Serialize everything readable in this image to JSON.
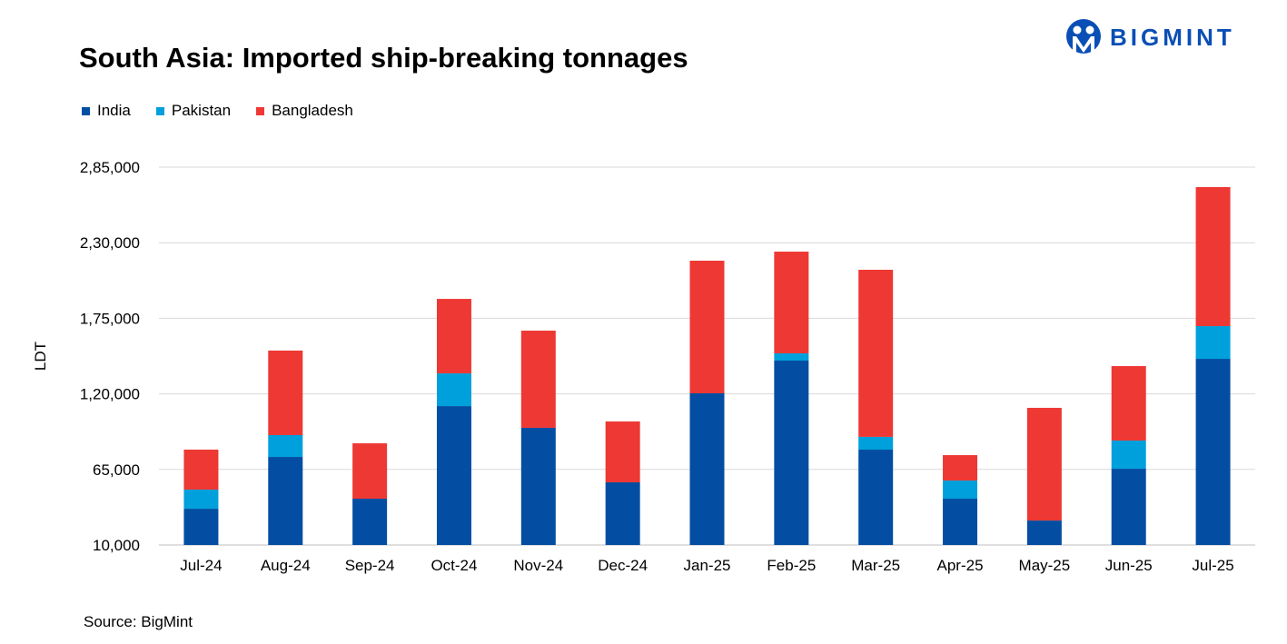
{
  "brand": "BIGMINT",
  "source": "Source: BigMint",
  "chart_data": {
    "type": "bar",
    "stacked": true,
    "title": "South Asia: Imported ship-breaking tonnages",
    "ylabel": "LDT",
    "xlabel": "",
    "ylim": [
      10000,
      285000
    ],
    "yticks": [
      10000,
      65000,
      120000,
      175000,
      230000,
      285000
    ],
    "ytick_labels": [
      "10,000",
      "65,000",
      "1,20,000",
      "1,75,000",
      "2,30,000",
      "2,85,000"
    ],
    "grid": true,
    "legend_position": "top-left",
    "categories": [
      "Jul-24",
      "Aug-24",
      "Sep-24",
      "Oct-24",
      "Nov-24",
      "Dec-24",
      "Jan-25",
      "Feb-25",
      "Mar-25",
      "Apr-25",
      "May-25",
      "Jun-25",
      "Jul-25"
    ],
    "series": [
      {
        "name": "India",
        "color": "#034ea2",
        "values": [
          36400,
          74100,
          43700,
          111100,
          95300,
          55600,
          120400,
          144200,
          79400,
          43700,
          27800,
          65500,
          145500
        ]
      },
      {
        "name": "Pakistan",
        "color": "#00a0dc",
        "values": [
          13900,
          15900,
          0,
          23800,
          0,
          0,
          0,
          5300,
          9300,
          13200,
          0,
          20500,
          23800
        ]
      },
      {
        "name": "Bangladesh",
        "color": "#ee3833",
        "values": [
          29100,
          61500,
          40300,
          54200,
          70700,
          44300,
          96500,
          74000,
          121600,
          18500,
          82000,
          54200,
          101200
        ]
      }
    ]
  }
}
